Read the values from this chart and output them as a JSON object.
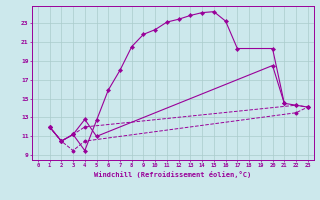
{
  "background_color": "#cce8ec",
  "grid_color": "#aacccc",
  "line_color": "#990099",
  "xlabel": "Windchill (Refroidissement éolien,°C)",
  "xlim": [
    -0.5,
    23.5
  ],
  "ylim": [
    8.5,
    24.8
  ],
  "xticks": [
    0,
    1,
    2,
    3,
    4,
    5,
    6,
    7,
    8,
    9,
    10,
    11,
    12,
    13,
    14,
    15,
    16,
    17,
    18,
    19,
    20,
    21,
    22,
    23
  ],
  "yticks": [
    9,
    11,
    13,
    15,
    17,
    19,
    21,
    23
  ],
  "curve1_x": [
    1,
    2,
    3,
    4,
    5,
    6,
    7,
    8,
    9,
    10,
    11,
    12,
    13,
    14,
    15,
    16,
    17,
    20,
    21,
    22,
    23
  ],
  "curve1_y": [
    12.0,
    10.5,
    11.2,
    9.5,
    12.7,
    15.9,
    18.0,
    20.5,
    21.8,
    22.3,
    23.1,
    23.4,
    23.8,
    24.1,
    24.2,
    23.2,
    20.3,
    20.3,
    14.5,
    14.3,
    14.1
  ],
  "curve2_x": [
    1,
    2,
    3,
    4,
    5,
    20,
    21
  ],
  "curve2_y": [
    12.0,
    10.5,
    11.2,
    12.8,
    11.0,
    18.5,
    14.5
  ],
  "curve3_x": [
    1,
    2,
    3,
    4,
    22,
    23
  ],
  "curve3_y": [
    12.0,
    10.5,
    11.2,
    12.0,
    14.3,
    14.1
  ],
  "curve4_x": [
    1,
    2,
    3,
    4,
    22,
    23
  ],
  "curve4_y": [
    12.0,
    10.5,
    9.5,
    10.5,
    13.5,
    14.1
  ]
}
